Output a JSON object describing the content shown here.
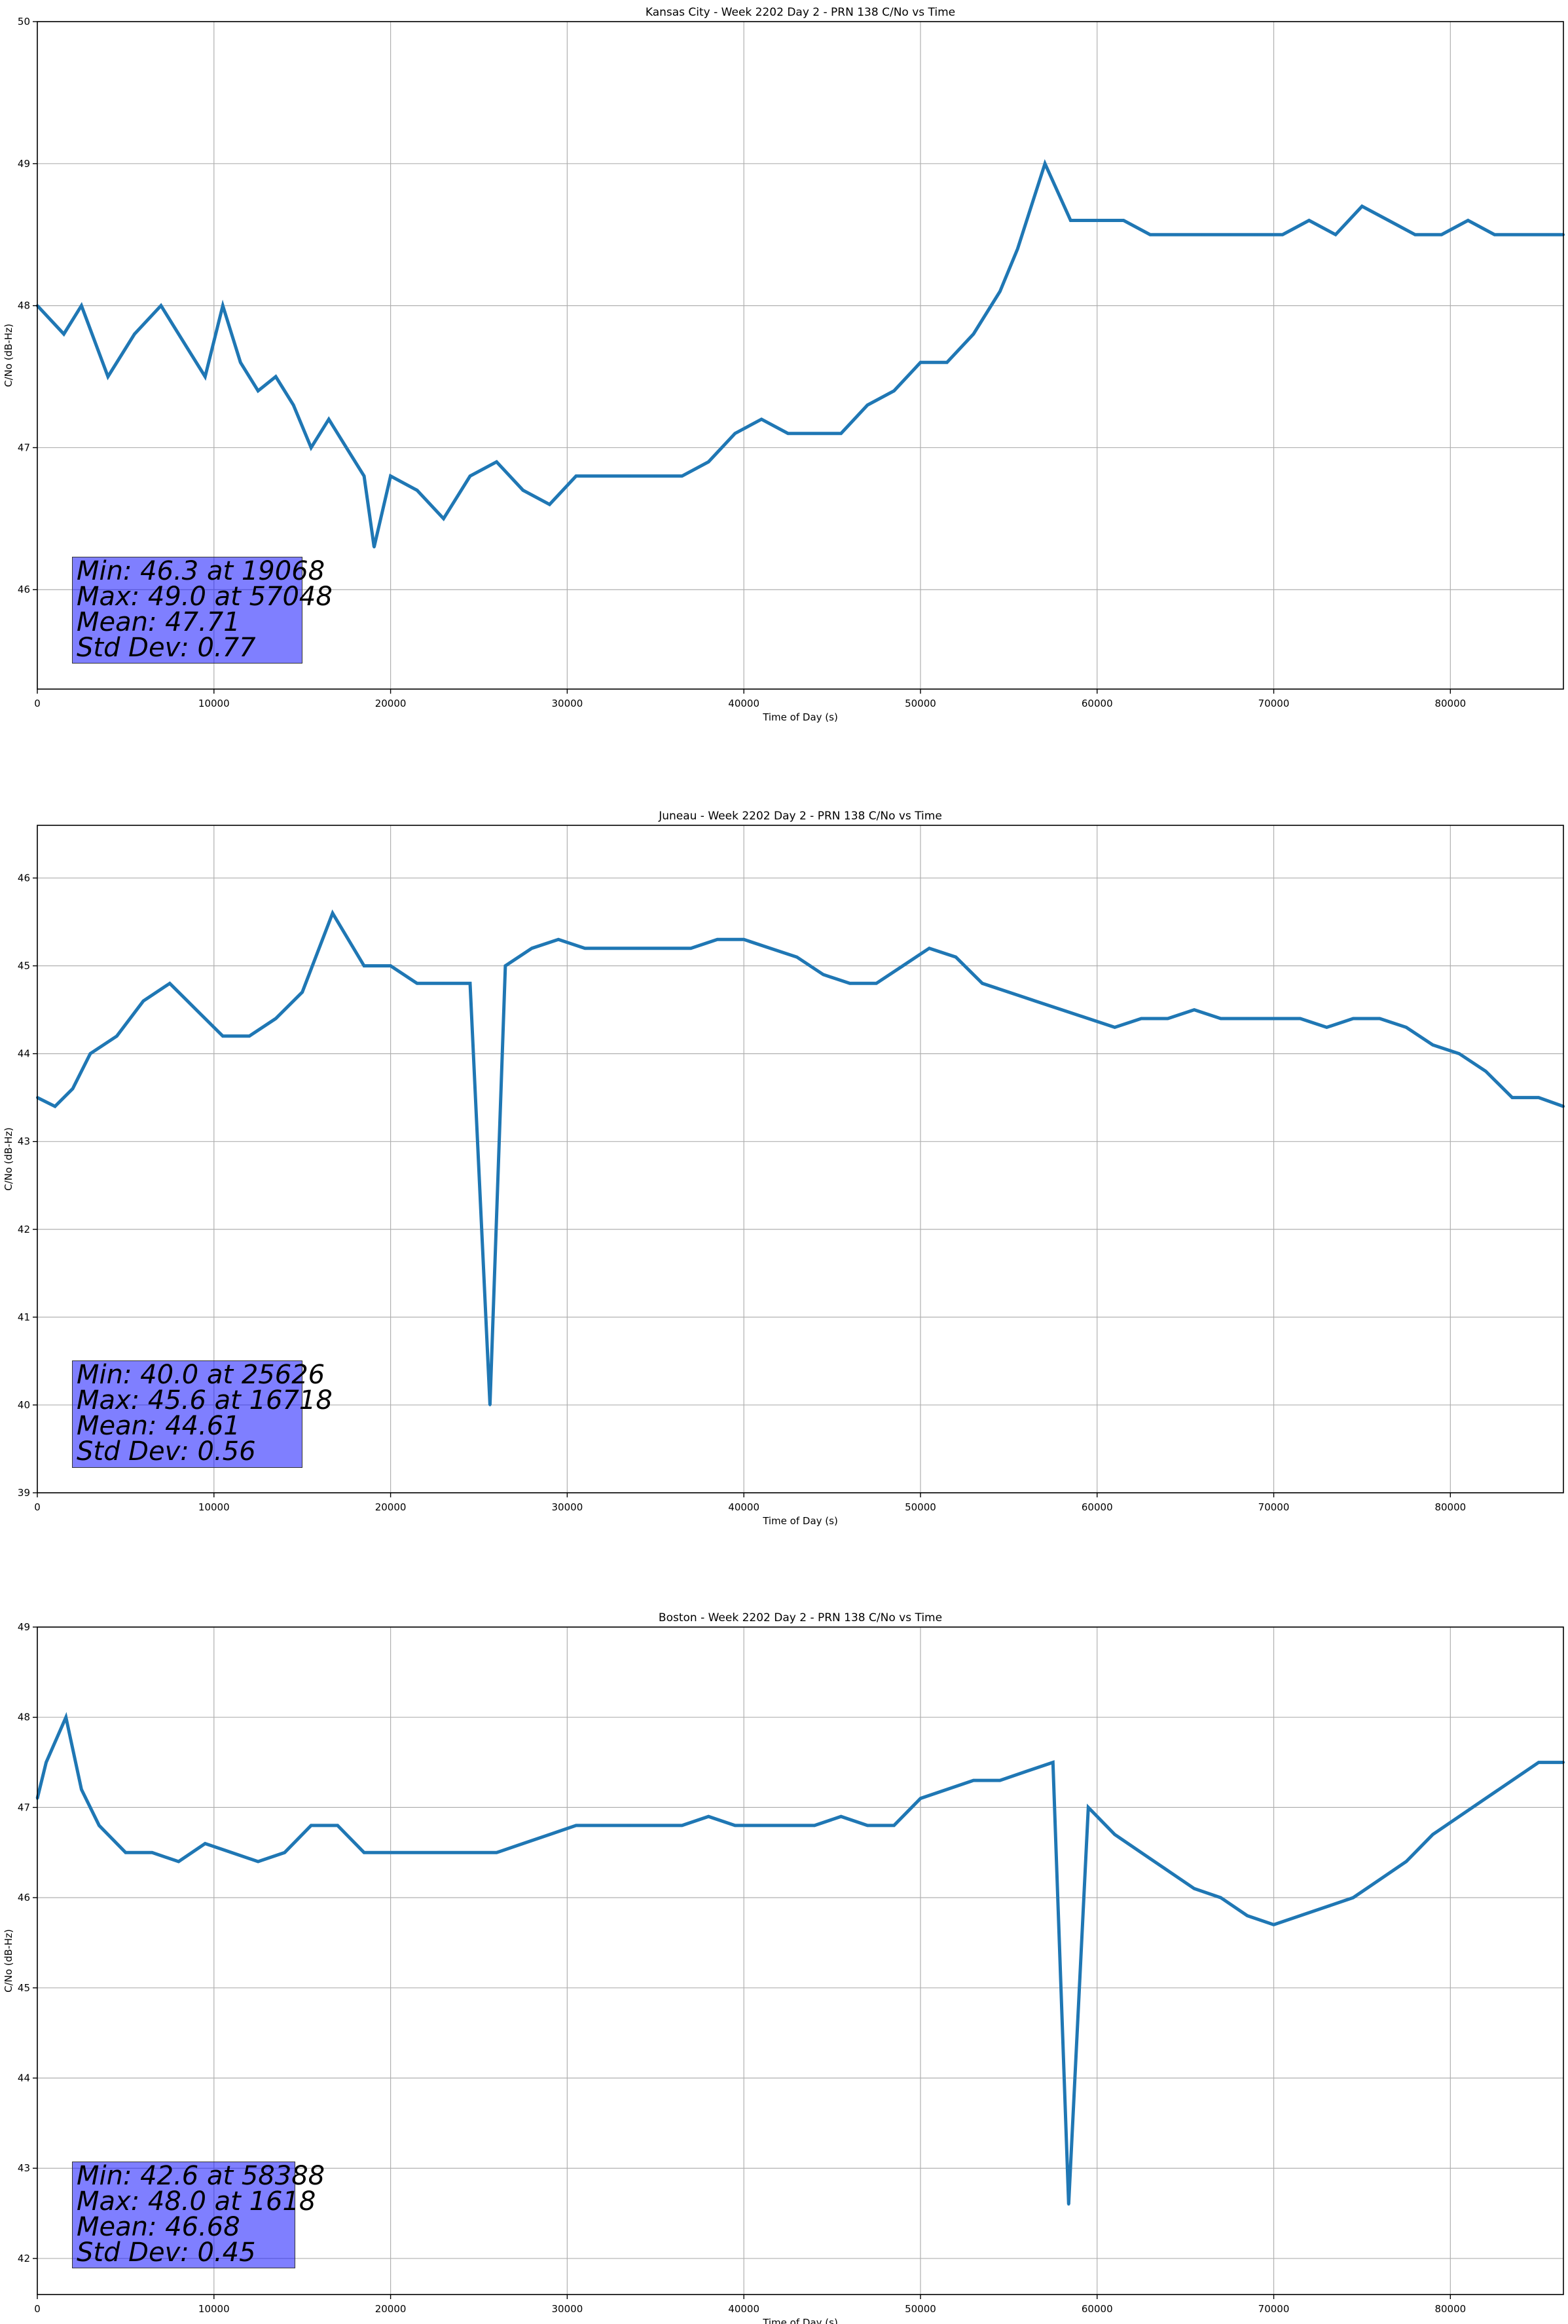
{
  "chart_data": [
    {
      "type": "line",
      "title": "Kansas City - Week 2202 Day 2 - PRN 138 C/No vs Time",
      "xlabel": "Time of Day (s)",
      "ylabel": "C/No (dB-Hz)",
      "xlim": [
        0,
        86400
      ],
      "ylim": [
        45.3,
        50
      ],
      "xticks": [
        0,
        10000,
        20000,
        30000,
        40000,
        50000,
        60000,
        70000,
        80000
      ],
      "yticks": [
        46,
        47,
        48,
        49,
        50
      ],
      "grid": true,
      "line_color": "#1f77b4",
      "series": [
        {
          "name": "C/No",
          "x": [
            0,
            1500,
            2500,
            4000,
            5500,
            7000,
            8500,
            9500,
            10500,
            11500,
            12500,
            13500,
            14500,
            15500,
            16500,
            17500,
            18500,
            19068,
            20000,
            21500,
            23000,
            24500,
            26000,
            27500,
            29000,
            30500,
            32000,
            33500,
            35000,
            36500,
            38000,
            39500,
            41000,
            42500,
            44000,
            45500,
            47000,
            48500,
            50000,
            51500,
            53000,
            54500,
            55500,
            57048,
            58500,
            60000,
            61500,
            63000,
            64500,
            66000,
            67500,
            69000,
            70500,
            72000,
            73500,
            75000,
            76500,
            78000,
            79500,
            81000,
            82500,
            84000,
            85500,
            86400
          ],
          "y": [
            48.0,
            47.8,
            48.0,
            47.5,
            47.8,
            48.0,
            47.7,
            47.5,
            48.0,
            47.6,
            47.4,
            47.5,
            47.3,
            47.0,
            47.2,
            47.0,
            46.8,
            46.3,
            46.8,
            46.7,
            46.5,
            46.8,
            46.9,
            46.7,
            46.6,
            46.8,
            46.8,
            46.8,
            46.8,
            46.8,
            46.9,
            47.1,
            47.2,
            47.1,
            47.1,
            47.1,
            47.3,
            47.4,
            47.6,
            47.6,
            47.8,
            48.1,
            48.4,
            49.0,
            48.6,
            48.6,
            48.6,
            48.5,
            48.5,
            48.5,
            48.5,
            48.5,
            48.5,
            48.6,
            48.5,
            48.7,
            48.6,
            48.5,
            48.5,
            48.6,
            48.5,
            48.5,
            48.5,
            48.5
          ]
        }
      ],
      "stats": [
        "Min: 46.3 at 19068",
        "Max: 49.0 at 57048",
        "Mean: 47.71",
        "Std Dev: 0.77"
      ]
    },
    {
      "type": "line",
      "title": "Juneau - Week 2202 Day 2 - PRN 138 C/No vs Time",
      "xlabel": "Time of Day (s)",
      "ylabel": "C/No (dB-Hz)",
      "xlim": [
        0,
        86400
      ],
      "ylim": [
        39,
        46.6
      ],
      "xticks": [
        0,
        10000,
        20000,
        30000,
        40000,
        50000,
        60000,
        70000,
        80000
      ],
      "yticks": [
        39,
        40,
        41,
        42,
        43,
        44,
        45,
        46
      ],
      "grid": true,
      "line_color": "#1f77b4",
      "series": [
        {
          "name": "C/No",
          "x": [
            0,
            1000,
            2000,
            3000,
            4500,
            6000,
            7500,
            9000,
            10500,
            12000,
            13500,
            15000,
            16718,
            18500,
            20000,
            21500,
            23000,
            24500,
            25626,
            26500,
            28000,
            29500,
            31000,
            32500,
            34000,
            35500,
            37000,
            38500,
            40000,
            41500,
            43000,
            44500,
            46000,
            47500,
            49000,
            50500,
            52000,
            53500,
            55000,
            56500,
            58000,
            59500,
            61000,
            62500,
            64000,
            65500,
            67000,
            68500,
            70000,
            71500,
            73000,
            74500,
            76000,
            77500,
            79000,
            80500,
            82000,
            83500,
            85000,
            86400
          ],
          "y": [
            43.5,
            43.4,
            43.6,
            44.0,
            44.2,
            44.6,
            44.8,
            44.5,
            44.2,
            44.2,
            44.4,
            44.7,
            45.6,
            45.0,
            45.0,
            44.8,
            44.8,
            44.8,
            40.0,
            45.0,
            45.2,
            45.3,
            45.2,
            45.2,
            45.2,
            45.2,
            45.2,
            45.3,
            45.3,
            45.2,
            45.1,
            44.9,
            44.8,
            44.8,
            45.0,
            45.2,
            45.1,
            44.8,
            44.7,
            44.6,
            44.5,
            44.4,
            44.3,
            44.4,
            44.4,
            44.5,
            44.4,
            44.4,
            44.4,
            44.4,
            44.3,
            44.4,
            44.4,
            44.3,
            44.1,
            44.0,
            43.8,
            43.5,
            43.5,
            43.4
          ]
        }
      ],
      "stats": [
        "Min: 40.0 at 25626",
        "Max: 45.6 at 16718",
        "Mean: 44.61",
        "Std Dev: 0.56"
      ]
    },
    {
      "type": "line",
      "title": "Boston - Week 2202 Day 2 - PRN 138 C/No vs Time",
      "xlabel": "Time of Day (s)",
      "ylabel": "C/No (dB-Hz)",
      "xlim": [
        0,
        86400
      ],
      "ylim": [
        41.6,
        49
      ],
      "xticks": [
        0,
        10000,
        20000,
        30000,
        40000,
        50000,
        60000,
        70000,
        80000
      ],
      "yticks": [
        42,
        43,
        44,
        45,
        46,
        47,
        48,
        49
      ],
      "grid": true,
      "line_color": "#1f77b4",
      "series": [
        {
          "name": "C/No",
          "x": [
            0,
            500,
            1618,
            2500,
            3500,
            5000,
            6500,
            8000,
            9500,
            11000,
            12500,
            14000,
            15500,
            17000,
            18500,
            20000,
            21500,
            23000,
            24500,
            26000,
            27500,
            29000,
            30500,
            32000,
            33500,
            35000,
            36500,
            38000,
            39500,
            41000,
            42500,
            44000,
            45500,
            47000,
            48500,
            50000,
            51500,
            53000,
            54500,
            56000,
            57500,
            58388,
            59500,
            61000,
            62500,
            64000,
            65500,
            67000,
            68500,
            70000,
            71500,
            73000,
            74500,
            76000,
            77500,
            79000,
            80500,
            82000,
            83500,
            85000,
            86400
          ],
          "y": [
            47.1,
            47.5,
            48.0,
            47.2,
            46.8,
            46.5,
            46.5,
            46.4,
            46.6,
            46.5,
            46.4,
            46.5,
            46.8,
            46.8,
            46.5,
            46.5,
            46.5,
            46.5,
            46.5,
            46.5,
            46.6,
            46.7,
            46.8,
            46.8,
            46.8,
            46.8,
            46.8,
            46.9,
            46.8,
            46.8,
            46.8,
            46.8,
            46.9,
            46.8,
            46.8,
            47.1,
            47.2,
            47.3,
            47.3,
            47.4,
            47.5,
            42.6,
            47.0,
            46.7,
            46.5,
            46.3,
            46.1,
            46.0,
            45.8,
            45.7,
            45.8,
            45.9,
            46.0,
            46.2,
            46.4,
            46.7,
            46.9,
            47.1,
            47.3,
            47.5,
            47.5
          ]
        }
      ],
      "stats": [
        "Min: 42.6 at 58388",
        "Max: 48.0 at 1618",
        "Mean: 46.68",
        "Std Dev: 0.45"
      ]
    }
  ]
}
